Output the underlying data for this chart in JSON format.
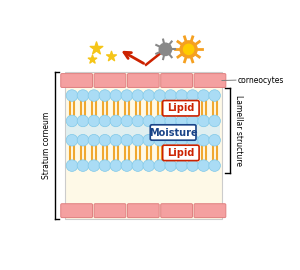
{
  "bg_color": "#ffffff",
  "skin_bg": "#fef9e7",
  "corneocyte_color": "#f4a0a0",
  "corneocyte_edge": "#e08080",
  "lipid_ball_color": "#aadcf5",
  "lipid_ball_edge": "#80c8e8",
  "lipid_tail_color": "#f0a830",
  "moisture_bg": "#c8e8f8",
  "title_left": "Stratum corneum",
  "title_right": "Lamellar structure",
  "label_corneocytes": "corneocytes",
  "label_lipid": "Lipid",
  "label_moisture": "Moisture",
  "arrow_color": "#cc2200",
  "star_color": "#f5c518",
  "germ_color": "#888888",
  "sun_color": "#f5a020",
  "sun_inner": "#ffcc00"
}
